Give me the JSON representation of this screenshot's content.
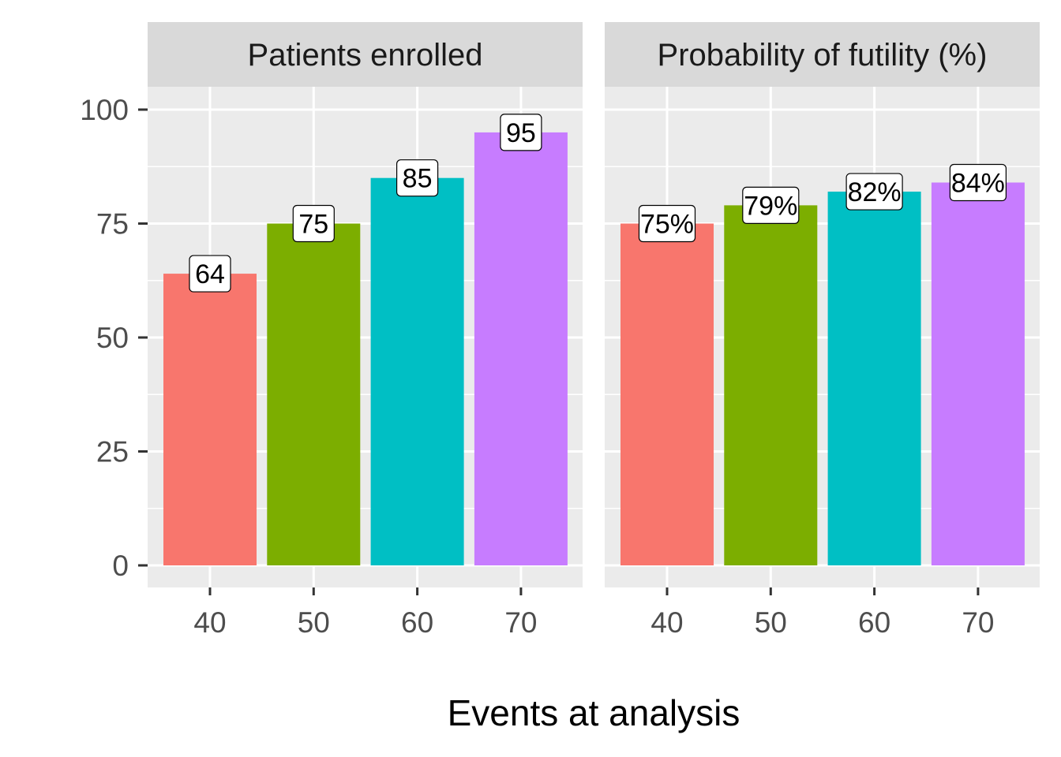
{
  "chart_data": {
    "type": "bar",
    "xlabel": "Events at analysis",
    "ylabel": "",
    "categories": [
      "40",
      "50",
      "60",
      "70"
    ],
    "ylim": [
      0,
      100
    ],
    "yticks": [
      "0",
      "25",
      "50",
      "75",
      "100"
    ],
    "grid": true,
    "legend": "none",
    "colors": [
      "#F8766D",
      "#7CAE00",
      "#00BFC4",
      "#C77CFF"
    ],
    "panels": [
      {
        "name": "Patients enrolled",
        "values": [
          64,
          75,
          85,
          95
        ],
        "labels": [
          "64",
          "75",
          "85",
          "95"
        ]
      },
      {
        "name": "Probability of futility (%)",
        "values": [
          75,
          79,
          82,
          84
        ],
        "labels": [
          "75%",
          "79%",
          "82%",
          "84%"
        ]
      }
    ]
  }
}
